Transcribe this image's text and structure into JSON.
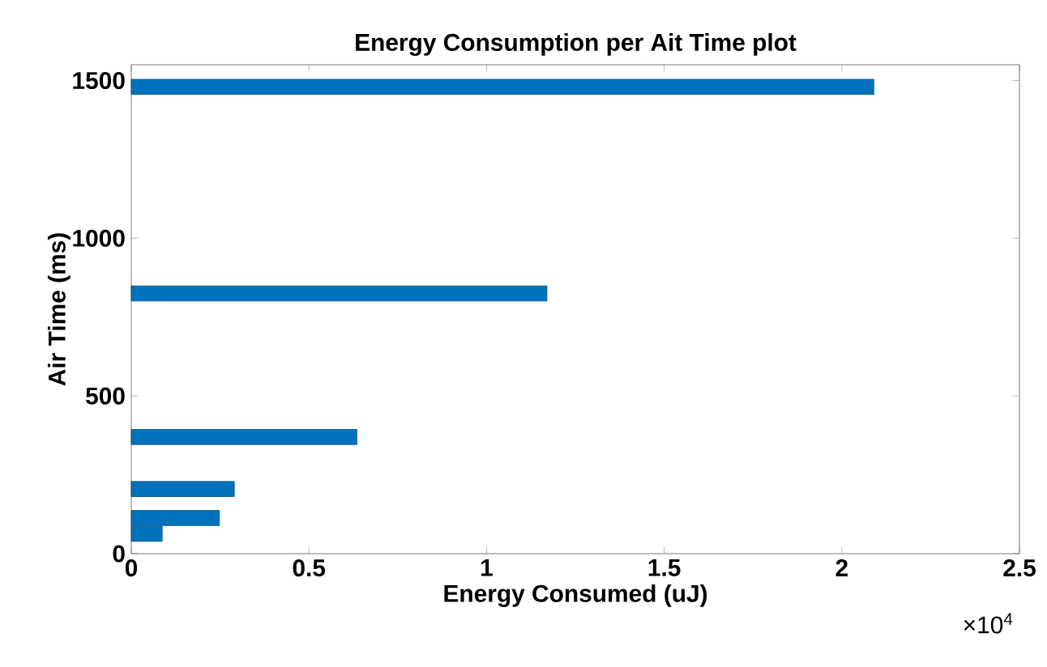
{
  "chart_data": {
    "type": "bar",
    "orientation": "horizontal",
    "title": "Energy Consumption per Ait Time plot",
    "xlabel": "Energy Consumed (uJ)",
    "ylabel": "Air Time (ms)",
    "x": [
      1480,
      825,
      370,
      205,
      113,
      63
    ],
    "values": [
      2.09,
      1.17,
      0.635,
      0.29,
      0.248,
      0.087
    ],
    "color": "#0072bd",
    "xlim": [
      0,
      2.5
    ],
    "xticks": [
      0,
      0.5,
      1,
      1.5,
      2,
      2.5
    ],
    "ylim": [
      0,
      1550
    ],
    "yticks": [
      0,
      500,
      1000,
      1500
    ],
    "annotations": [
      "×10$^{4}$"
    ],
    "grid": false
  }
}
